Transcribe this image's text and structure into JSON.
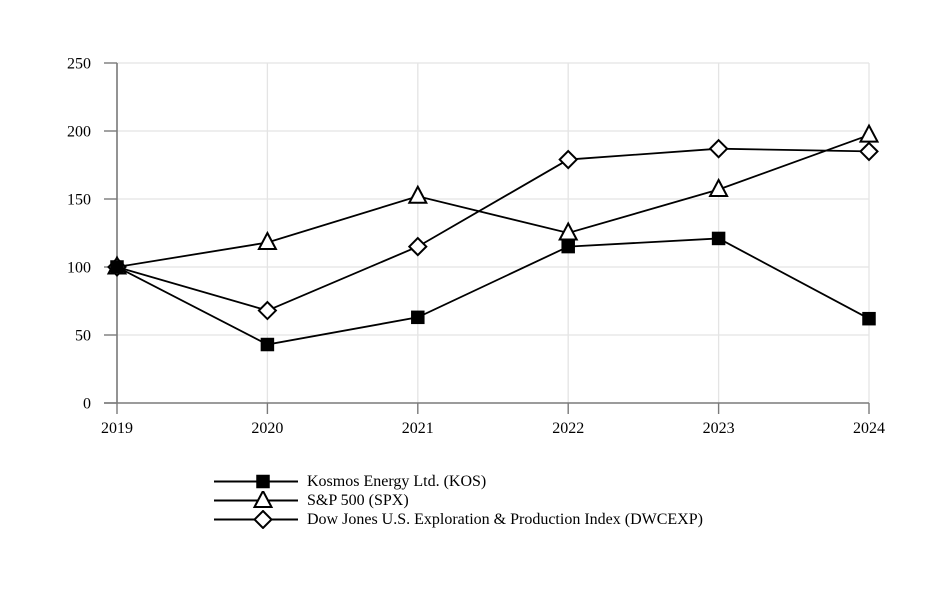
{
  "chart_data": {
    "type": "line",
    "title": "",
    "xlabel": "",
    "ylabel": "",
    "categories": [
      "2019",
      "2020",
      "2021",
      "2022",
      "2023",
      "2024"
    ],
    "y_ticks": [
      0,
      50,
      100,
      150,
      200,
      250
    ],
    "ylim": [
      0,
      250
    ],
    "grid": true,
    "legend_position": "bottom-left",
    "series": [
      {
        "name": "Kosmos Energy Ltd. (KOS)",
        "marker": "square-filled",
        "values": [
          100,
          43,
          63,
          115,
          121,
          62
        ]
      },
      {
        "name": "S&P 500 (SPX)",
        "marker": "triangle-open",
        "values": [
          100,
          118,
          152,
          125,
          157,
          197
        ]
      },
      {
        "name": "Dow Jones U.S. Exploration & Production Index (DWCEXP)",
        "marker": "diamond-open",
        "values": [
          100,
          68,
          115,
          179,
          187,
          185
        ]
      }
    ],
    "colors": {
      "line": "#000000",
      "marker_fill": "#000000",
      "marker_open_fill": "#ffffff",
      "axis": "#7a7a7a",
      "grid": "#e4e4e4",
      "background": "#ffffff",
      "text": "#000000"
    }
  }
}
